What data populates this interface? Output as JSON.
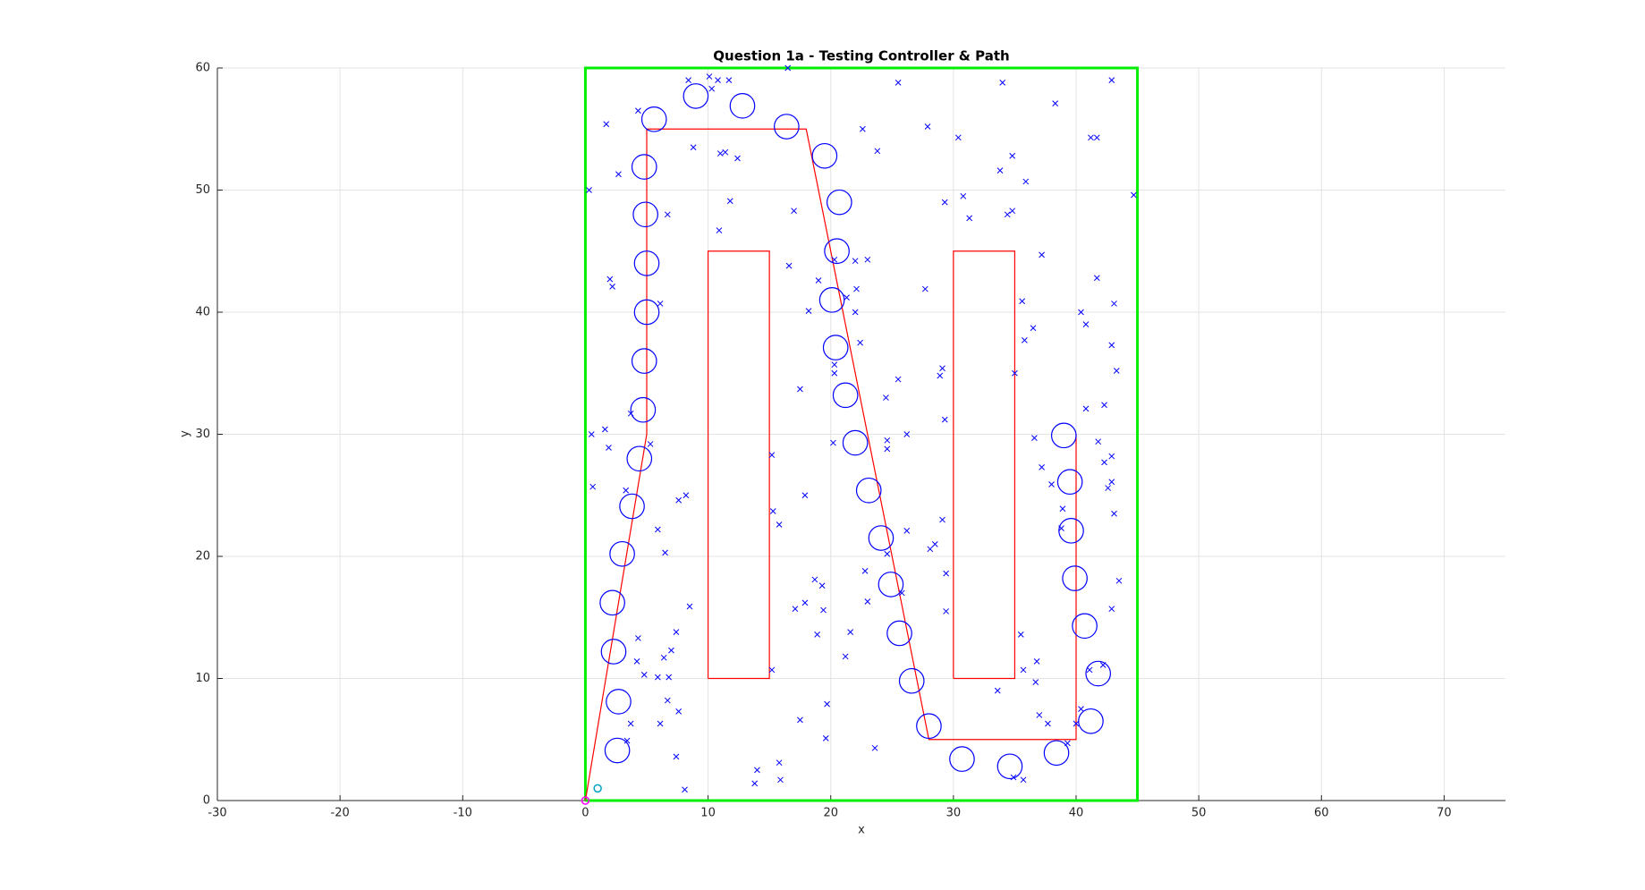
{
  "chart_data": {
    "type": "scatter",
    "title": "Question 1a - Testing Controller & Path",
    "xlabel": "x",
    "ylabel": "y",
    "xlim": [
      -30,
      75
    ],
    "ylim": [
      0,
      60
    ],
    "xticks": [
      -30,
      -20,
      -10,
      0,
      10,
      20,
      30,
      40,
      50,
      60,
      70
    ],
    "yticks": [
      0,
      10,
      20,
      30,
      40,
      50,
      60
    ],
    "grid": true,
    "series": [
      {
        "kind": "line",
        "color": "#00ee00",
        "width": 3,
        "x": [
          0,
          45,
          45,
          0,
          0
        ],
        "y": [
          0,
          0,
          60,
          60,
          0
        ]
      },
      {
        "kind": "line",
        "color": "#ff0000",
        "width": 1.2,
        "x": [
          10,
          15,
          15,
          10,
          10
        ],
        "y": [
          10,
          10,
          45,
          45,
          10
        ]
      },
      {
        "kind": "line",
        "color": "#ff0000",
        "width": 1.2,
        "x": [
          30,
          35,
          35,
          30,
          30
        ],
        "y": [
          10,
          10,
          45,
          45,
          10
        ]
      },
      {
        "kind": "line",
        "color": "#ff0000",
        "width": 1.2,
        "x": [
          0,
          5,
          5,
          18,
          28,
          40,
          40
        ],
        "y": [
          0,
          30,
          55,
          55,
          5,
          5,
          30
        ]
      },
      {
        "kind": "marker",
        "marker": "x",
        "color": "#0000ff",
        "x": [
          0.3,
          1.7,
          2.7,
          2,
          2.2,
          0.5,
          1.6,
          1.9,
          0.6,
          3.3,
          3.7,
          4.3,
          5.3,
          5.9,
          6.5,
          6.7,
          6.1,
          4.3,
          4.2,
          4.8,
          5.9,
          6.4,
          7,
          7.4,
          6.7,
          6.1,
          3.7,
          3.4,
          7.6,
          7.4,
          7.6,
          8.2,
          8.5,
          8.1,
          6.8,
          8.4,
          10.1,
          10.8,
          11.7,
          10.3,
          8.8,
          11,
          11.4,
          12.4,
          11.8,
          10.9,
          16.5,
          17,
          16.6,
          18.2,
          19,
          20.3,
          22,
          23,
          22.1,
          22,
          21.3,
          22.4,
          20.3,
          20.3,
          17.5,
          17.9,
          15.2,
          15.3,
          15.8,
          18.7,
          19.3,
          17.9,
          17.1,
          19.4,
          18.9,
          21.6,
          21.2,
          15.2,
          17.5,
          19.7,
          19.6,
          14,
          15.8,
          15.9,
          13.8,
          22.6,
          23.8,
          25.5,
          27.9,
          29.3,
          30.4,
          30.8,
          31.3,
          27.7,
          34,
          33.8,
          34.8,
          35.9,
          34.4,
          34.8,
          37.2,
          38.3,
          42.9,
          41.2,
          41.7,
          44.7,
          41.7,
          40.4,
          43.1,
          40.8,
          42.9,
          43.3,
          35.6,
          35.8,
          36.5,
          35,
          29.1,
          28.9,
          29.3,
          25.5,
          24.5,
          26.2,
          24.6,
          24.6,
          20.2,
          36.6,
          40.8,
          42.3,
          37.2,
          41.8,
          42.9,
          42.3,
          42.9,
          42.6,
          43.1,
          43.5,
          42.9,
          38.9,
          38.8,
          38,
          29.1,
          28.5,
          28.1,
          26.2,
          29.4,
          29.4,
          35.5,
          36.8,
          35.7,
          36.7,
          33.6,
          37,
          37.7,
          40.4,
          40,
          41.1,
          42.2,
          35.7,
          34.9,
          23.6,
          22.8,
          23,
          24.6,
          25.8,
          39.3
        ],
        "y": [
          50,
          55.4,
          51.3,
          42.7,
          42.1,
          30,
          30.4,
          28.9,
          25.7,
          25.4,
          31.7,
          56.5,
          29.2,
          22.2,
          20.3,
          48,
          40.7,
          13.3,
          11.4,
          10.3,
          10.1,
          11.7,
          12.3,
          13.8,
          8.2,
          6.3,
          6.3,
          4.9,
          7.3,
          3.6,
          24.6,
          25,
          15.9,
          0.9,
          10.1,
          59,
          59.3,
          59,
          59,
          58.3,
          53.5,
          53,
          53.1,
          52.6,
          49.1,
          46.7,
          60,
          48.3,
          43.8,
          40.1,
          42.6,
          44.3,
          44.2,
          44.3,
          41.9,
          40,
          41.2,
          37.5,
          35.7,
          35,
          33.7,
          25,
          28.3,
          23.7,
          22.6,
          18.1,
          17.6,
          16.2,
          15.7,
          15.6,
          13.6,
          13.8,
          11.8,
          10.7,
          6.6,
          7.9,
          5.1,
          2.5,
          3.1,
          1.7,
          1.4,
          55,
          53.2,
          58.8,
          55.2,
          49,
          54.3,
          49.5,
          47.7,
          41.9,
          58.8,
          51.6,
          52.8,
          50.7,
          48,
          48.3,
          44.7,
          57.1,
          59,
          54.3,
          54.3,
          49.6,
          42.8,
          40,
          40.7,
          39,
          37.3,
          35.2,
          40.9,
          37.7,
          38.7,
          35,
          35.4,
          34.8,
          31.2,
          34.5,
          33,
          30,
          29.5,
          28.8,
          29.3,
          29.7,
          32.1,
          32.4,
          27.3,
          29.4,
          28.2,
          27.7,
          26.1,
          25.6,
          23.5,
          18,
          15.7,
          23.9,
          22.3,
          25.9,
          23,
          21,
          20.6,
          22.1,
          18.6,
          15.5,
          13.6,
          11.4,
          10.7,
          9.7,
          9,
          7,
          6.3,
          7.5,
          6.3,
          10.7,
          11.1,
          1.7,
          1.9,
          4.3,
          18.8,
          16.3,
          20.2,
          17,
          4.7
        ]
      },
      {
        "kind": "marker",
        "marker": "circle",
        "size": 1,
        "color": "#0000ff",
        "x": [
          2.6,
          2.7,
          2.3,
          2.2,
          3,
          3.8,
          4.4,
          4.7,
          4.8,
          5,
          5,
          4.9,
          4.8,
          5.6,
          9,
          12.8,
          16.4,
          19.5,
          20.7,
          20.5,
          20.1,
          20.4,
          21.2,
          22,
          23.1,
          24.1,
          24.9,
          25.6,
          26.6,
          28,
          30.7,
          34.6,
          38.4,
          41.2,
          41.8,
          40.7,
          39.9,
          39.6,
          39.5,
          39
        ],
        "y": [
          4.1,
          8.1,
          12.2,
          16.2,
          20.2,
          24.1,
          28,
          32,
          36,
          40,
          44,
          48,
          51.9,
          55.8,
          57.7,
          56.9,
          55.2,
          52.8,
          49,
          45,
          41,
          37.1,
          33.2,
          29.3,
          25.4,
          21.5,
          17.7,
          13.7,
          9.8,
          6.1,
          3.4,
          2.8,
          3.9,
          6.5,
          10.4,
          14.3,
          18.2,
          22.1,
          26.1,
          29.9
        ]
      },
      {
        "kind": "marker",
        "marker": "dot",
        "color": "#00a0c0",
        "x": [
          1
        ],
        "y": [
          1
        ]
      },
      {
        "kind": "marker",
        "marker": "dot",
        "color": "#ff00ff",
        "x": [
          0
        ],
        "y": [
          0
        ]
      }
    ]
  }
}
